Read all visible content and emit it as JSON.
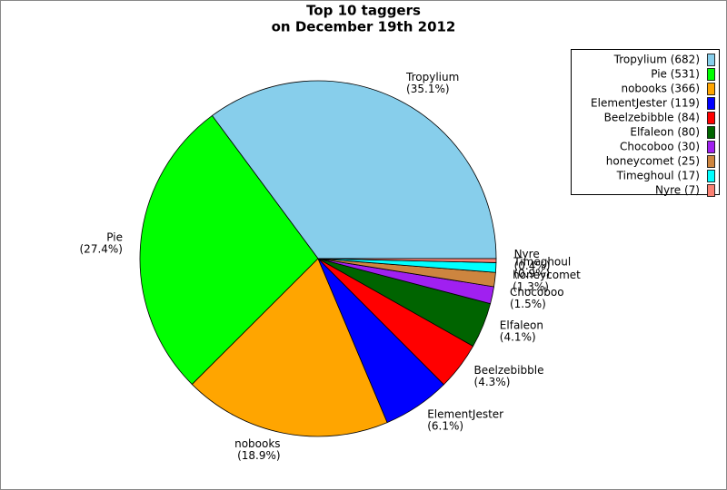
{
  "chart_data": {
    "type": "pie",
    "title": "Top 10 taggers",
    "subtitle": "on December 19th 2012",
    "categories": [
      "Tropylium",
      "Pie",
      "nobooks",
      "ElementJester",
      "Beelzebibble",
      "Elfaleon",
      "Chocoboo",
      "honeycomet",
      "Timeghoul",
      "Nyre"
    ],
    "values": [
      682,
      531,
      366,
      119,
      84,
      80,
      30,
      25,
      17,
      7
    ],
    "percent_labels": [
      "(35.1%)",
      "(27.4%)",
      "(18.9%)",
      "(6.1%)",
      "(4.3%)",
      "(4.1%)",
      "(1.5%)",
      "(1.3%)",
      "(0.9%)",
      "(0.4%)"
    ],
    "legend_labels": [
      "Tropylium (682)",
      "Pie (531)",
      "nobooks (366)",
      "ElementJester (119)",
      "Beelzebibble (84)",
      "Elfaleon (80)",
      "Chocoboo (30)",
      "honeycomet (25)",
      "Timeghoul (17)",
      "Nyre (7)"
    ],
    "colors": [
      "#87ceeb",
      "#00ff00",
      "#ffa500",
      "#0000ff",
      "#ff0000",
      "#006400",
      "#a020f0",
      "#cd853f",
      "#00ffff",
      "#fa8072"
    ],
    "legend": "upper right"
  }
}
